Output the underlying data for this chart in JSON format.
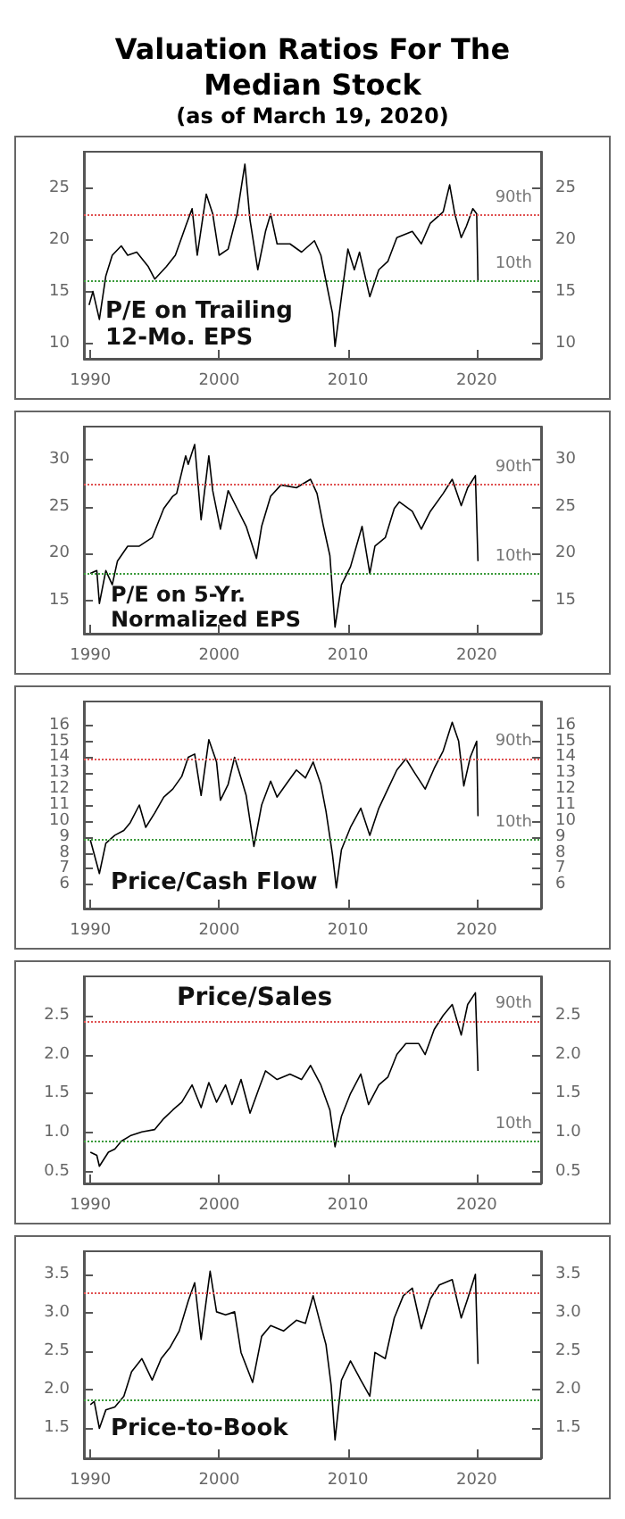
{
  "chart_data": [
    {
      "type": "line",
      "title": "Valuation Ratios For The Median Stock",
      "subtitle": "(as of March 19, 2020)",
      "annotations": [
        "P/E on Trailing 12-Mo. EPS"
      ],
      "xlim": [
        1989.5,
        2025
      ],
      "xticks": [
        1990,
        2000,
        2010,
        2020
      ],
      "ylim": [
        8.5,
        28.5
      ],
      "yticks": [
        10,
        15,
        20,
        25
      ],
      "y2lim": [
        8.5,
        28.5
      ],
      "y2ticks": [
        10,
        15,
        20,
        25
      ],
      "grid": false,
      "ref_lines": [
        {
          "axis": "y",
          "value": 22.4,
          "label": "90th",
          "color": "#e05050",
          "line_style": "dotted"
        },
        {
          "axis": "y",
          "value": 16,
          "label": "10th",
          "color": "#3a9a3a",
          "line_style": "dotted"
        }
      ],
      "series": [
        {
          "color": "#000000",
          "x": [
            1989.9,
            1990.2,
            1990.7,
            1991.2,
            1991.7,
            1992.4,
            1992.9,
            1993.6,
            1994.5,
            1995,
            1995.9,
            1996.6,
            1997.4,
            1997.9,
            1998.3,
            1999,
            1999.5,
            2000,
            2000.7,
            2001.4,
            2002,
            2002.4,
            2003,
            2003.6,
            2004,
            2004.5,
            2005.5,
            2006.4,
            2007.4,
            2007.9,
            2008.3,
            2008.8,
            2009,
            2009.5,
            2010,
            2010.5,
            2010.9,
            2011.7,
            2012.4,
            2013.1,
            2013.8,
            2015,
            2015.7,
            2016.4,
            2017.4,
            2017.9,
            2018.3,
            2018.8,
            2019.2,
            2019.7,
            2020,
            2020.1
          ],
          "values": [
            13.7,
            15,
            12.3,
            16.5,
            18.5,
            19.4,
            18.5,
            18.8,
            17.4,
            16.2,
            17.4,
            18.5,
            21.3,
            23,
            18.5,
            24.4,
            22.5,
            18.5,
            19.1,
            22.5,
            27.3,
            21.9,
            17.1,
            20.8,
            22.5,
            19.6,
            19.6,
            18.8,
            19.9,
            18.5,
            16,
            12.9,
            9.7,
            14.5,
            19.1,
            17.1,
            18.8,
            14.5,
            17.1,
            17.9,
            20.2,
            20.8,
            19.6,
            21.6,
            22.7,
            25.3,
            22.5,
            20.2,
            21.3,
            23,
            22.5,
            16
          ]
        }
      ]
    },
    {
      "type": "line",
      "annotations": [
        "P/E on 5-Yr. Normalized EPS"
      ],
      "xlim": [
        1989.5,
        2025
      ],
      "xticks": [
        1990,
        2000,
        2010,
        2020
      ],
      "ylim": [
        11.5,
        33.5
      ],
      "yticks": [
        15,
        20,
        25,
        30
      ],
      "y2lim": [
        11.5,
        33.5
      ],
      "y2ticks": [
        15,
        20,
        25,
        30
      ],
      "grid": false,
      "ref_lines": [
        {
          "axis": "y",
          "value": 27.3,
          "label": "90th",
          "color": "#e05050",
          "line_style": "dotted"
        },
        {
          "axis": "y",
          "value": 17.9,
          "label": "10th",
          "color": "#3a9a3a",
          "line_style": "dotted"
        }
      ],
      "series": [
        {
          "color": "#000000",
          "x": [
            1990,
            1990.5,
            1990.7,
            1991.2,
            1991.7,
            1992.1,
            1992.9,
            1993.8,
            1994.8,
            1995.7,
            1996.4,
            1996.7,
            1997.4,
            1997.6,
            1998.1,
            1998.6,
            1999.2,
            1999.5,
            2000.1,
            2000.7,
            2001.4,
            2002.1,
            2002.9,
            2003.3,
            2004,
            2004.8,
            2006,
            2007.1,
            2007.6,
            2008.1,
            2008.6,
            2009,
            2009.5,
            2010.2,
            2011.1,
            2011.7,
            2012.1,
            2012.9,
            2013.6,
            2014,
            2015,
            2015.7,
            2016.4,
            2017.4,
            2018.1,
            2018.8,
            2019.3,
            2019.9,
            2020.1
          ],
          "values": [
            17.9,
            18.2,
            14.7,
            18.2,
            16.7,
            19.2,
            20.8,
            20.8,
            21.7,
            24.8,
            26.1,
            26.4,
            30.4,
            29.5,
            31.6,
            23.6,
            30.4,
            26.7,
            22.6,
            26.7,
            24.8,
            22.9,
            19.5,
            22.9,
            26.1,
            27.3,
            27,
            27.9,
            26.4,
            22.9,
            19.8,
            12.2,
            16.7,
            18.6,
            22.9,
            17.9,
            20.8,
            21.7,
            24.8,
            25.5,
            24.5,
            22.6,
            24.5,
            26.4,
            27.9,
            25.1,
            27,
            28.3,
            19.2
          ]
        }
      ]
    },
    {
      "type": "line",
      "annotations": [
        "Price/Cash Flow"
      ],
      "xlim": [
        1989.5,
        2025
      ],
      "xticks": [
        1990,
        2000,
        2010,
        2020
      ],
      "ylim": [
        4.5,
        17.5
      ],
      "yticks": [
        6,
        7,
        8,
        9,
        10,
        11,
        12,
        13,
        14,
        15,
        16
      ],
      "y2lim": [
        4.5,
        17.5
      ],
      "y2ticks": [
        6,
        7,
        8,
        9,
        10,
        11,
        12,
        13,
        14,
        15,
        16
      ],
      "grid": false,
      "ref_lines": [
        {
          "axis": "y",
          "value": 13.9,
          "label": "90th",
          "color": "#e05050",
          "line_style": "dotted"
        },
        {
          "axis": "y",
          "value": 8.8,
          "label": "10th",
          "color": "#3a9a3a",
          "line_style": "dotted"
        }
      ],
      "series": [
        {
          "color": "#000000",
          "x": [
            1990,
            1990.3,
            1990.7,
            1991.2,
            1991.9,
            1992.6,
            1993.1,
            1993.8,
            1994.3,
            1995,
            1995.7,
            1996.4,
            1997.1,
            1997.6,
            1998.1,
            1998.6,
            1999.2,
            1999.8,
            2000.1,
            2000.7,
            2001.2,
            2001.7,
            2002.1,
            2002.7,
            2003.3,
            2004,
            2004.5,
            2005.2,
            2006,
            2006.7,
            2007.3,
            2007.9,
            2008.3,
            2008.8,
            2009.1,
            2009.5,
            2010.2,
            2011,
            2011.7,
            2012.4,
            2013.1,
            2013.8,
            2014.5,
            2015.2,
            2016,
            2016.7,
            2017.4,
            2018.1,
            2018.6,
            2019,
            2019.5,
            2020,
            2020.1
          ],
          "values": [
            8.8,
            7.9,
            6.7,
            8.6,
            9.1,
            9.4,
            9.9,
            11,
            9.6,
            10.5,
            11.5,
            12,
            12.8,
            14,
            14.2,
            11.6,
            15.1,
            13.7,
            11.3,
            12.3,
            14,
            12.7,
            11.6,
            8.4,
            11,
            12.5,
            11.5,
            12.3,
            13.2,
            12.7,
            13.7,
            12.3,
            10.6,
            7.9,
            5.8,
            8.2,
            9.6,
            10.8,
            9.1,
            10.8,
            12,
            13.2,
            13.9,
            13,
            12,
            13.3,
            14.4,
            16.2,
            15,
            12.2,
            14,
            15,
            10.3
          ]
        }
      ]
    },
    {
      "type": "line",
      "annotations": [
        "Price/Sales"
      ],
      "xlim": [
        1989.5,
        2025
      ],
      "xticks": [
        1990,
        2000,
        2010,
        2020
      ],
      "ylim": [
        0.35,
        3
      ],
      "yticks": [
        0.5,
        {
          "value": 1,
          "label": "1.0"
        },
        1.5,
        {
          "value": 2,
          "label": "2.0"
        },
        2.5
      ],
      "y2lim": [
        0.35,
        3
      ],
      "y2ticks": [
        0.5,
        {
          "value": 1,
          "label": "1.0"
        },
        1.5,
        {
          "value": 2,
          "label": "2.0"
        },
        2.5
      ],
      "grid": false,
      "ref_lines": [
        {
          "axis": "y",
          "value": 2.43,
          "label": "90th",
          "color": "#e05050",
          "line_style": "dotted"
        },
        {
          "axis": "y",
          "value": 0.89,
          "label": "10th",
          "color": "#3a9a3a",
          "line_style": "dotted"
        }
      ],
      "series": [
        {
          "color": "#000000",
          "x": [
            1990,
            1990.5,
            1990.7,
            1991.4,
            1991.9,
            1992.4,
            1993.1,
            1994,
            1995,
            1995.7,
            1996.4,
            1997.1,
            1997.9,
            1998.6,
            1999.2,
            1999.8,
            2000.5,
            2001,
            2001.7,
            2002.4,
            2003.1,
            2003.6,
            2004.5,
            2005.5,
            2006.4,
            2007.1,
            2007.9,
            2008.6,
            2009,
            2009.5,
            2010.2,
            2011,
            2011.6,
            2012.4,
            2013.1,
            2013.8,
            2014.5,
            2015.5,
            2016,
            2016.7,
            2017.4,
            2018.1,
            2018.8,
            2019.3,
            2019.9,
            2020.1
          ],
          "values": [
            0.75,
            0.71,
            0.57,
            0.75,
            0.79,
            0.89,
            0.96,
            1.01,
            1.04,
            1.18,
            1.29,
            1.39,
            1.61,
            1.32,
            1.64,
            1.39,
            1.61,
            1.36,
            1.68,
            1.25,
            1.57,
            1.79,
            1.68,
            1.75,
            1.68,
            1.86,
            1.61,
            1.29,
            0.82,
            1.21,
            1.5,
            1.75,
            1.36,
            1.61,
            1.71,
            2,
            2.14,
            2.14,
            2,
            2.32,
            2.5,
            2.64,
            2.25,
            2.64,
            2.79,
            1.79
          ]
        }
      ]
    },
    {
      "type": "line",
      "annotations": [
        "Price-to-Book"
      ],
      "xlim": [
        1989.5,
        2025
      ],
      "xticks": [
        1990,
        2000,
        2010,
        2020
      ],
      "ylim": [
        1.1,
        3.8
      ],
      "yticks": [
        1.5,
        {
          "value": 2,
          "label": "2.0"
        },
        2.5,
        {
          "value": 3,
          "label": "3.0"
        },
        3.5
      ],
      "y2lim": [
        1.1,
        3.8
      ],
      "y2ticks": [
        1.5,
        {
          "value": 2,
          "label": "2.0"
        },
        2.5,
        {
          "value": 3,
          "label": "3.0"
        },
        3.5
      ],
      "grid": false,
      "ref_lines": [
        {
          "axis": "y",
          "value": 3.25,
          "label": null,
          "color": "#e05050",
          "line_style": "dotted"
        },
        {
          "axis": "y",
          "value": 1.86,
          "label": null,
          "color": "#3a9a3a",
          "line_style": "dotted"
        }
      ],
      "series": [
        {
          "color": "#000000",
          "x": [
            1990,
            1990.3,
            1990.7,
            1991.2,
            1991.9,
            1992.6,
            1993.2,
            1994,
            1994.8,
            1995.5,
            1996.2,
            1996.9,
            1997.6,
            1998.1,
            1998.6,
            1999.3,
            1999.8,
            2000.5,
            2001.2,
            2001.7,
            2002.6,
            2003.3,
            2004,
            2005,
            2006,
            2006.7,
            2007.3,
            2007.9,
            2008.3,
            2008.7,
            2009,
            2009.5,
            2010.2,
            2011,
            2011.7,
            2012.1,
            2012.9,
            2013.6,
            2014.3,
            2015,
            2015.7,
            2016.4,
            2017.1,
            2018.1,
            2018.8,
            2019.3,
            2019.9,
            2020.1
          ],
          "values": [
            1.8,
            1.84,
            1.49,
            1.73,
            1.77,
            1.91,
            2.23,
            2.4,
            2.12,
            2.4,
            2.55,
            2.76,
            3.15,
            3.39,
            2.65,
            3.54,
            3.01,
            2.97,
            3.01,
            2.48,
            2.09,
            2.69,
            2.83,
            2.76,
            2.9,
            2.86,
            3.22,
            2.83,
            2.58,
            2.05,
            1.34,
            2.12,
            2.37,
            2.12,
            1.91,
            2.48,
            2.4,
            2.93,
            3.22,
            3.32,
            2.79,
            3.18,
            3.36,
            3.43,
            2.93,
            3.18,
            3.5,
            2.33
          ]
        }
      ]
    }
  ]
}
